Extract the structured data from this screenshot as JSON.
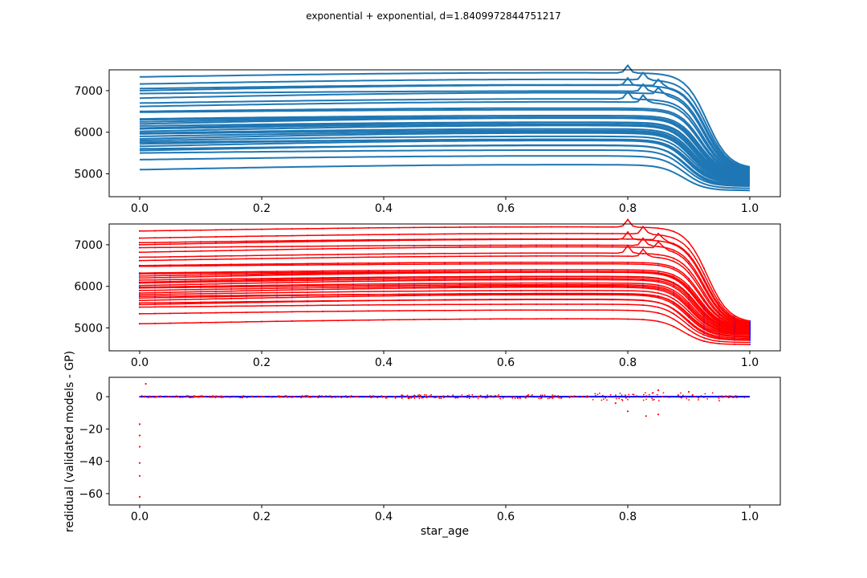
{
  "figure": {
    "suptitle": "exponential + exponential, d=1.8409972844751217"
  },
  "colors": {
    "curve": "#1f77b4",
    "fit": "#ff0000",
    "points": "#0000ff",
    "residual": "#ff0000",
    "spine": "#000000"
  },
  "chart_data": [
    {
      "type": "line",
      "panel": "top",
      "description_series": "blue evolutionary tracks (effective temperature vs normalized age)",
      "xlim": [
        -0.05,
        1.05
      ],
      "ylim": [
        4450,
        7500
      ],
      "xticks": [
        0.0,
        0.2,
        0.4,
        0.6,
        0.8,
        1.0
      ],
      "xtick_labels": [
        "0.0",
        "0.2",
        "0.4",
        "0.6",
        "0.8",
        "1.0"
      ],
      "yticks": [
        5000,
        6000,
        7000
      ],
      "ytick_labels": [
        "5000",
        "6000",
        "7000"
      ],
      "xlabel": "",
      "ylabel": "",
      "track_start_values": [
        7330,
        7160,
        7050,
        7000,
        6930,
        6820,
        6700,
        6620,
        6500,
        6480,
        6320,
        6300,
        6250,
        6200,
        6150,
        6100,
        6080,
        6020,
        5980,
        5960,
        5900,
        5840,
        5800,
        5760,
        5720,
        5660,
        5600,
        5560,
        5500,
        5340,
        5100
      ],
      "track_end_values": [
        4600,
        4650,
        4700,
        4720,
        4750,
        4780,
        4800,
        4830,
        4850,
        4870,
        4880,
        4900,
        4920,
        4930,
        4950,
        4960,
        4970,
        4980,
        4990,
        5000,
        5010,
        5020,
        5030,
        5040,
        5050,
        5060,
        5070,
        5080,
        5090,
        5100,
        5120
      ]
    },
    {
      "type": "line",
      "panel": "middle",
      "description_series": "validated models (blue points) with GP fit (red lines)",
      "xlim": [
        -0.05,
        1.05
      ],
      "ylim": [
        4450,
        7500
      ],
      "xticks": [
        0.0,
        0.2,
        0.4,
        0.6,
        0.8,
        1.0
      ],
      "xtick_labels": [
        "0.0",
        "0.2",
        "0.4",
        "0.6",
        "0.8",
        "1.0"
      ],
      "yticks": [
        5000,
        6000,
        7000
      ],
      "ytick_labels": [
        "5000",
        "6000",
        "7000"
      ],
      "xlabel": "",
      "ylabel": ""
    },
    {
      "type": "scatter",
      "panel": "bottom",
      "xlim": [
        -0.05,
        1.05
      ],
      "ylim": [
        -67,
        12
      ],
      "xticks": [
        0.0,
        0.2,
        0.4,
        0.6,
        0.8,
        1.0
      ],
      "xtick_labels": [
        "0.0",
        "0.2",
        "0.4",
        "0.6",
        "0.8",
        "1.0"
      ],
      "yticks": [
        0,
        -20,
        -40,
        -60
      ],
      "ytick_labels": [
        "0",
        "−20",
        "−40",
        "−60"
      ],
      "xlabel": "star_age",
      "ylabel": "redidual (validated models - GP)",
      "notable_residuals": [
        {
          "x": 0.0,
          "y": -62
        },
        {
          "x": 0.0,
          "y": -49
        },
        {
          "x": 0.0,
          "y": -41
        },
        {
          "x": 0.0,
          "y": -31
        },
        {
          "x": 0.0,
          "y": -24
        },
        {
          "x": 0.0,
          "y": -17
        },
        {
          "x": 0.01,
          "y": 8
        },
        {
          "x": 0.78,
          "y": -4
        },
        {
          "x": 0.8,
          "y": -9
        },
        {
          "x": 0.83,
          "y": -12
        },
        {
          "x": 0.85,
          "y": -11
        },
        {
          "x": 0.85,
          "y": 4
        },
        {
          "x": 0.9,
          "y": 3
        }
      ]
    }
  ]
}
